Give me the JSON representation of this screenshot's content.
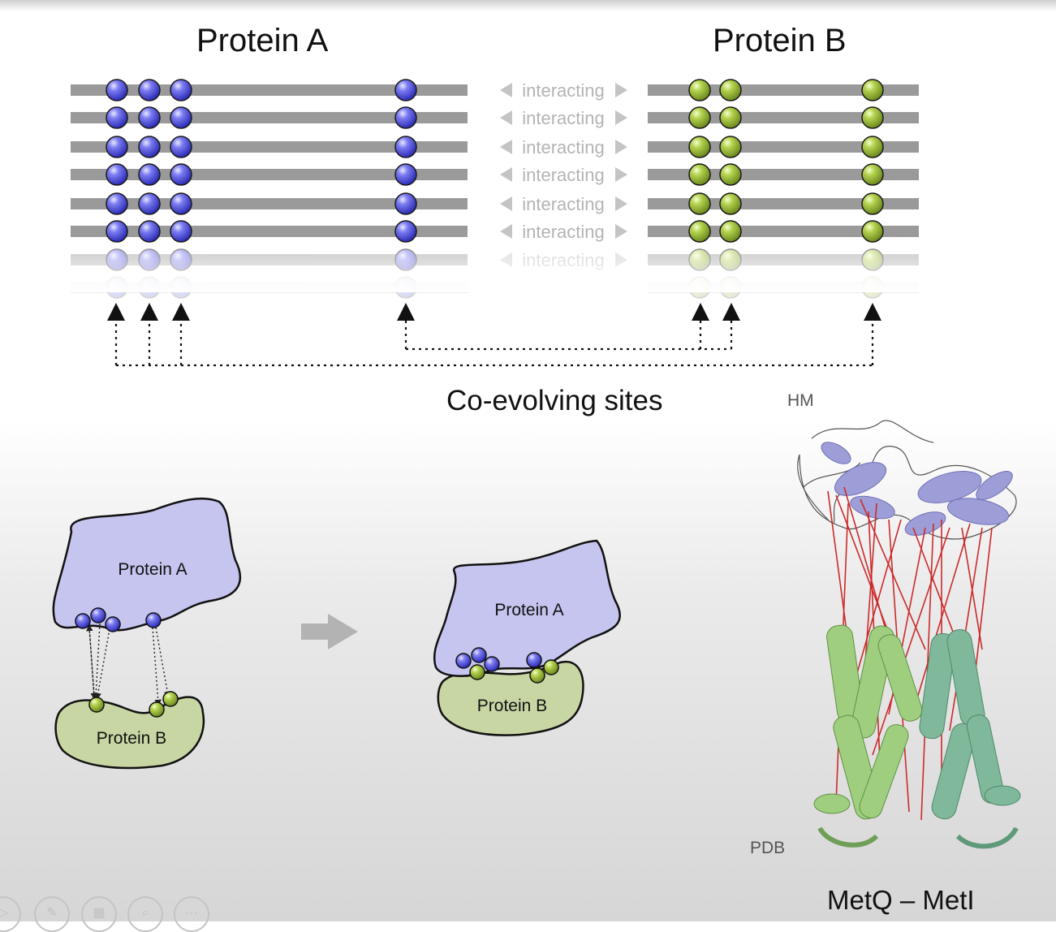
{
  "alignment": {
    "protein_a_title": "Protein A",
    "protein_b_title": "Protein B",
    "interaction_label": "interacting",
    "row_count": 7,
    "coevolving_label": "Co-evolving sites"
  },
  "schematic": {
    "before": {
      "protein_a": "Protein A",
      "protein_b": "Protein B"
    },
    "after": {
      "protein_a": "Protein A",
      "protein_b": "Protein B"
    }
  },
  "structure": {
    "top_label": "HM",
    "bottom_label": "PDB",
    "caption": "MetQ – MetI"
  },
  "colors": {
    "protein_a_site": "#5a5ae0",
    "protein_b_site": "#9ebf3a",
    "protein_a_fill": "#c5c5ef",
    "protein_b_fill": "#c7d6a3",
    "contact_lines": "#cc2a2a"
  },
  "player_controls": [
    "play-icon",
    "pen-icon",
    "slides-icon",
    "zoom-icon",
    "more-icon"
  ]
}
